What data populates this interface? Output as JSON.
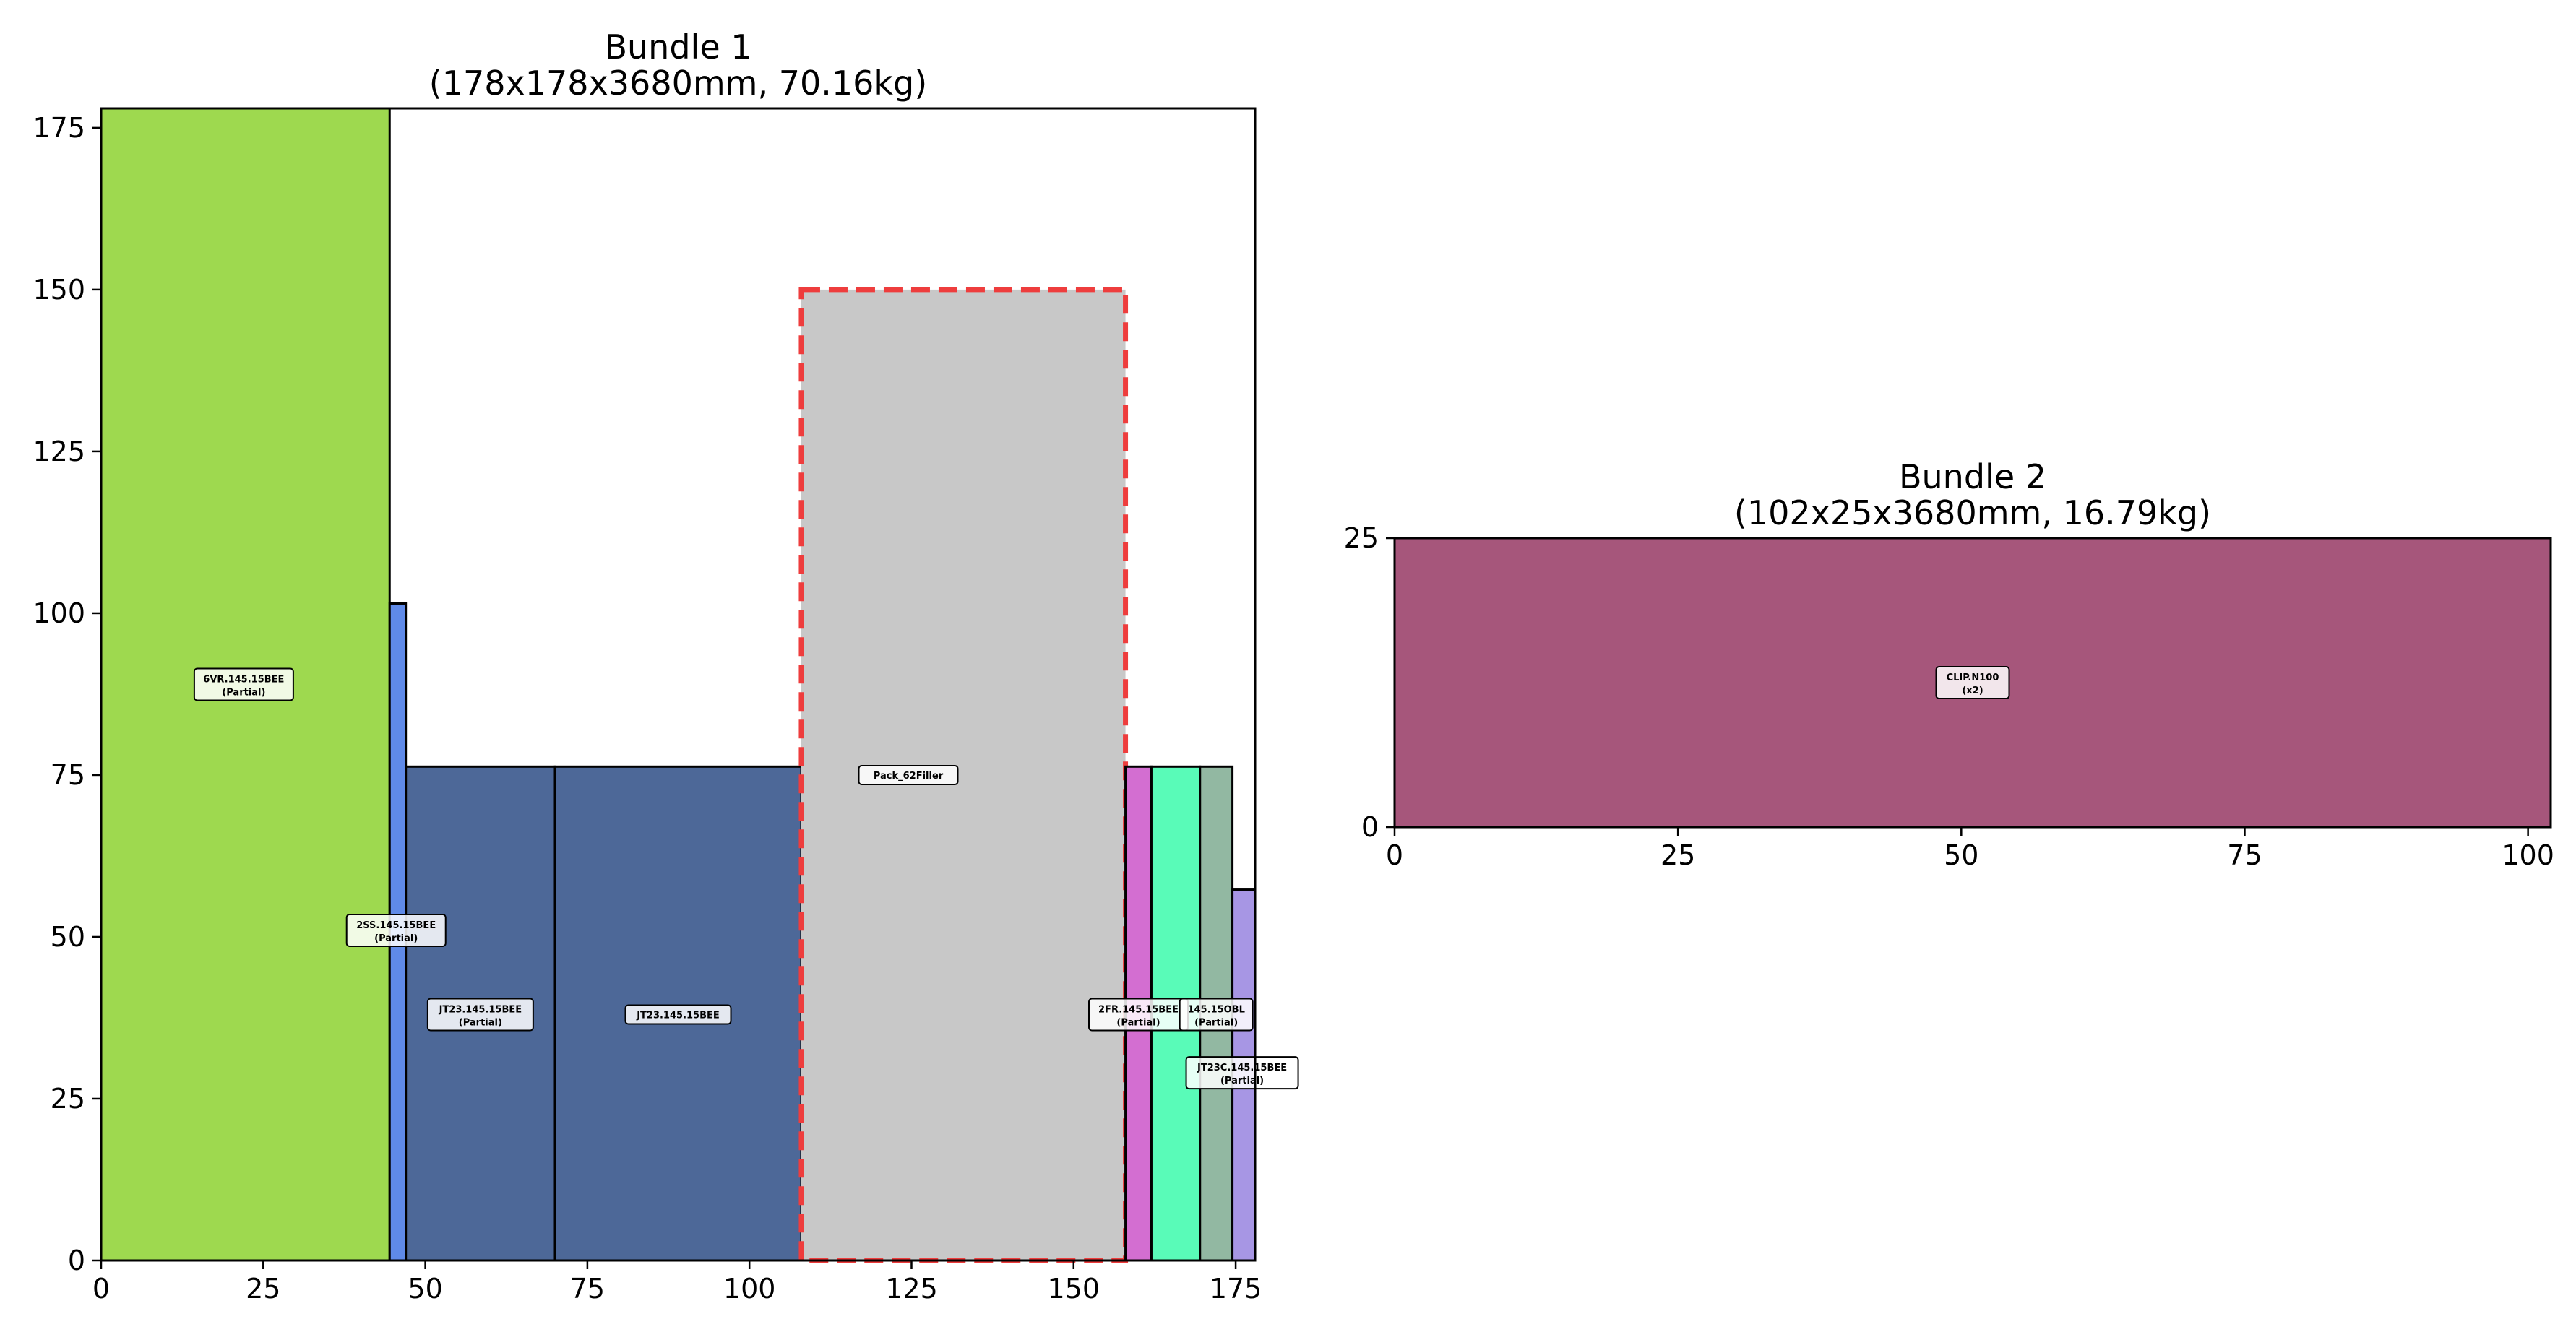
{
  "chart_data": [
    {
      "type": "bar",
      "chart_kind": "2D packing layout (rectangles)",
      "title_line1": "Bundle 1",
      "title_line2": "(178x178x3680mm, 70.16kg)",
      "xlim": [
        0,
        178
      ],
      "ylim": [
        0,
        178
      ],
      "xticks": [
        0,
        25,
        50,
        75,
        100,
        125,
        150,
        175
      ],
      "yticks": [
        0,
        25,
        50,
        75,
        100,
        125,
        150,
        175
      ],
      "grid": false,
      "rects": [
        {
          "x": 0,
          "y": 0,
          "w": 44.5,
          "h": 178,
          "color": "#9ed94f",
          "label1": "6VR.145.15BEE",
          "label2": "(Partial)",
          "label_x": 22,
          "label_y": 89
        },
        {
          "x": 44.5,
          "y": 0,
          "w": 2.5,
          "h": 101.5,
          "color": "#5f8ae8",
          "label1": "2SS.145.15BEE",
          "label2": "(Partial)",
          "label_x": 45.5,
          "label_y": 51
        },
        {
          "x": 47,
          "y": 0,
          "w": 23,
          "h": 76.3,
          "color": "#4d6898",
          "label1": "JT23.145.15BEE",
          "label2": "(Partial)",
          "label_x": 58.5,
          "label_y": 38
        },
        {
          "x": 70,
          "y": 0,
          "w": 38,
          "h": 76.3,
          "color": "#4d6898",
          "label1": "JT23.145.15BEE",
          "label2": "",
          "label_x": 89,
          "label_y": 38
        },
        {
          "x": 108,
          "y": 0,
          "w": 50,
          "h": 150,
          "color": "#c8c8c8",
          "dashed": true,
          "label1": "Pack_62Filler",
          "label2": "",
          "label_x": 124.5,
          "label_y": 75
        },
        {
          "x": 158,
          "y": 0,
          "w": 4,
          "h": 76.3,
          "color": "#d36ed1",
          "label1": "2FR.145.15BEE",
          "label2": "(Partial)",
          "label_x": 160,
          "label_y": 38
        },
        {
          "x": 162,
          "y": 0,
          "w": 7.5,
          "h": 76.3,
          "color": "#59fbb8",
          "label1": "145.15OBL",
          "label2": "(Partial)",
          "label_x": 172,
          "label_y": 38
        },
        {
          "x": 169.5,
          "y": 0,
          "w": 5,
          "h": 76.3,
          "color": "#92b8a2",
          "label1": "",
          "label2": "",
          "label_x": 172,
          "label_y": 38
        },
        {
          "x": 174.5,
          "y": 0,
          "w": 3.5,
          "h": 57.3,
          "color": "#a796e4",
          "label1": "JT23C.145.15BEE",
          "label2": "(Partial)",
          "label_x": 176,
          "label_y": 29
        }
      ]
    },
    {
      "type": "bar",
      "chart_kind": "2D packing layout (rectangles)",
      "title_line1": "Bundle 2",
      "title_line2": "(102x25x3680mm, 16.79kg)",
      "xlim": [
        0,
        102
      ],
      "ylim": [
        0,
        25
      ],
      "xticks": [
        0,
        25,
        50,
        75,
        100
      ],
      "yticks": [
        0,
        25
      ],
      "grid": false,
      "rects": [
        {
          "x": 0,
          "y": 0,
          "w": 102,
          "h": 25,
          "color": "#a6567b",
          "label1": "CLIP.N100",
          "label2": "(x2)",
          "label_x": 51,
          "label_y": 12.5
        }
      ]
    }
  ]
}
